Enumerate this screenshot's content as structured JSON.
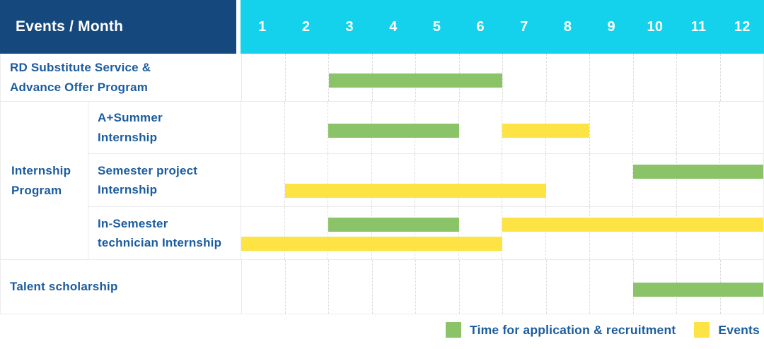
{
  "header": {
    "title": "Events / Month",
    "months": [
      "1",
      "2",
      "3",
      "4",
      "5",
      "6",
      "7",
      "8",
      "9",
      "10",
      "11",
      "12"
    ]
  },
  "colors": {
    "header_bg": "#15497D",
    "months_bg": "#14D2EB",
    "label_text": "#1A5C9F",
    "green": "#8BC368",
    "yellow": "#FDE344"
  },
  "legend": [
    {
      "label": "Time for application & recruitment",
      "color_key": "green"
    },
    {
      "label": "Events",
      "color_key": "yellow"
    }
  ],
  "chart_data": {
    "type": "bar",
    "subtype": "gantt-schedule",
    "title": "Events / Month",
    "x_categories": [
      1,
      2,
      3,
      4,
      5,
      6,
      7,
      8,
      9,
      10,
      11,
      12
    ],
    "x_range": [
      1,
      12
    ],
    "grid": true,
    "legend_position": "bottom-right",
    "series_legend": {
      "green": "Time for application & recruitment",
      "yellow": "Events"
    },
    "rows": [
      {
        "group": "",
        "label": "RD Substitute Service &\nAdvance Offer Program",
        "bars": [
          {
            "series": "Time for application & recruitment",
            "color": "green",
            "start_month": 3,
            "end_month": 6,
            "lane": "center"
          }
        ]
      },
      {
        "group": "Internship\nProgram",
        "label": "A+Summer\nInternship",
        "bars": [
          {
            "series": "Time for application & recruitment",
            "color": "green",
            "start_month": 3,
            "end_month": 5,
            "lane": "center"
          },
          {
            "series": "Events",
            "color": "yellow",
            "start_month": 7,
            "end_month": 8,
            "lane": "center"
          }
        ]
      },
      {
        "group": "Internship\nProgram",
        "label": "Semester project\nInternship",
        "bars": [
          {
            "series": "Time for application & recruitment",
            "color": "green",
            "start_month": 10,
            "end_month": 12,
            "lane": "top"
          },
          {
            "series": "Events",
            "color": "yellow",
            "start_month": 2,
            "end_month": 7,
            "lane": "bottom"
          }
        ]
      },
      {
        "group": "Internship\nProgram",
        "label": "In-Semester\ntechnician Internship",
        "bars": [
          {
            "series": "Time for application & recruitment",
            "color": "green",
            "start_month": 3,
            "end_month": 5,
            "lane": "top"
          },
          {
            "series": "Events",
            "color": "yellow",
            "start_month": 7,
            "end_month": 12,
            "lane": "top"
          },
          {
            "series": "Events",
            "color": "yellow",
            "start_month": 1,
            "end_month": 6,
            "lane": "bottom"
          }
        ]
      },
      {
        "group": "",
        "label": "Talent scholarship",
        "bars": [
          {
            "series": "Time for application & recruitment",
            "color": "green",
            "start_month": 10,
            "end_month": 12,
            "lane": "center"
          }
        ]
      }
    ]
  }
}
